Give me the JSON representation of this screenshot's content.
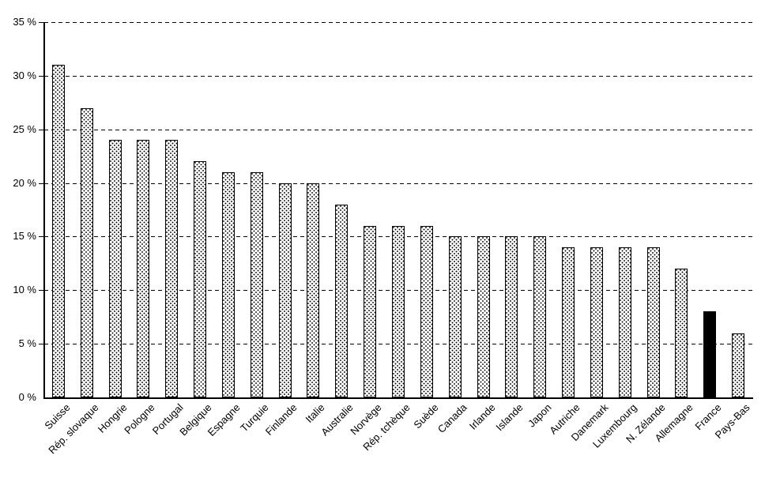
{
  "chart_data": {
    "type": "bar",
    "title": "",
    "xlabel": "",
    "ylabel": "",
    "categories": [
      "Suisse",
      "Rép. slovaque",
      "Hongrie",
      "Pologne",
      "Portugal",
      "Belgique",
      "Espagne",
      "Turquie",
      "Finlande",
      "Italie",
      "Australie",
      "Norvège",
      "Rép. tchèque",
      "Suède",
      "Canada",
      "Irlande",
      "Islande",
      "Japon",
      "Autriche",
      "Danemark",
      "Luxembourg",
      "N. Zélande",
      "Allemagne",
      "France",
      "Pays-Bas"
    ],
    "values": [
      31,
      27,
      24,
      24,
      24,
      22,
      21,
      21,
      20,
      20,
      18,
      16,
      16,
      16,
      15,
      15,
      15,
      15,
      14,
      14,
      14,
      14,
      12,
      8,
      6
    ],
    "unit": "%",
    "ylim": [
      0,
      35
    ],
    "ytick_step": 5,
    "ytick_labels": [
      "0 %",
      "5 %",
      "10 %",
      "15 %",
      "20 %",
      "25 %",
      "30 %",
      "35 %"
    ],
    "grid": "dashed-horizontal",
    "legend": "none",
    "highlight_category": "France",
    "colors": {
      "background": "#ffffff",
      "bar_fill": "#ffffff",
      "bar_pattern_dots": "#000000",
      "bar_border": "#000000",
      "highlight_fill": "#000000",
      "axis": "#000000",
      "gridline": "#000000",
      "text": "#000000"
    }
  }
}
